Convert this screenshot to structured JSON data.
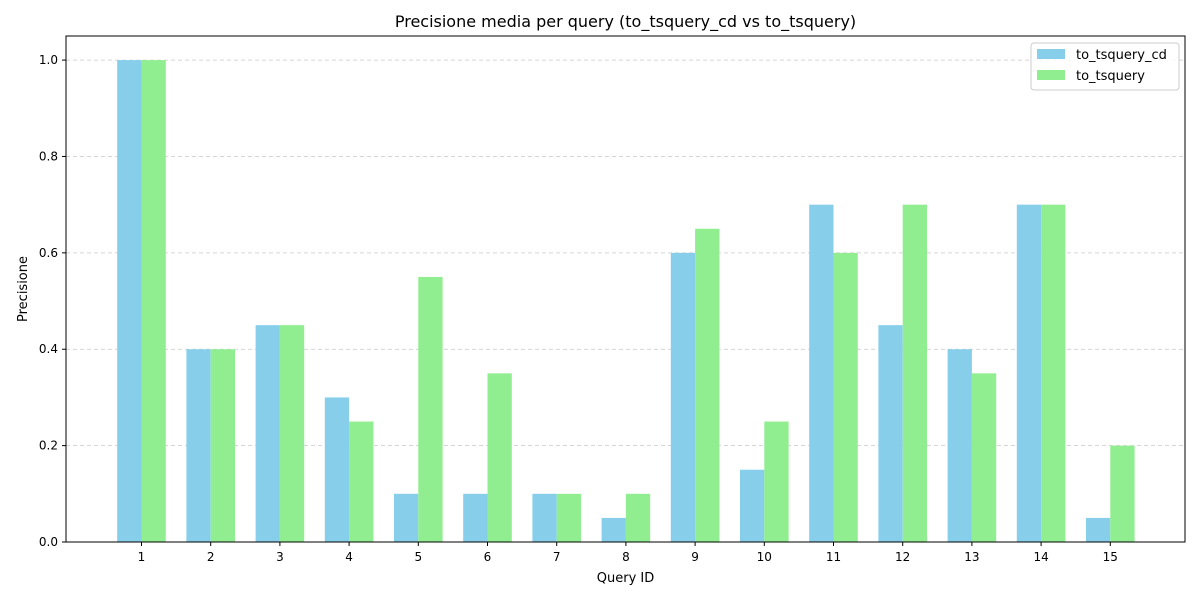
{
  "chart_data": {
    "type": "bar",
    "title": "Precisione media per query (to_tsquery_cd vs to_tsquery)",
    "xlabel": "Query ID",
    "ylabel": "Precisione",
    "categories": [
      "1",
      "2",
      "3",
      "4",
      "5",
      "6",
      "7",
      "8",
      "9",
      "10",
      "11",
      "12",
      "13",
      "14",
      "15"
    ],
    "series": [
      {
        "name": "to_tsquery_cd",
        "color": "#87ceeb",
        "values": [
          1.0,
          0.4,
          0.45,
          0.3,
          0.1,
          0.1,
          0.1,
          0.05,
          0.6,
          0.15,
          0.7,
          0.45,
          0.4,
          0.7,
          0.05
        ]
      },
      {
        "name": "to_tsquery",
        "color": "#90ee90",
        "values": [
          1.0,
          0.4,
          0.45,
          0.25,
          0.55,
          0.35,
          0.1,
          0.1,
          0.65,
          0.25,
          0.6,
          0.7,
          0.35,
          0.7,
          0.2
        ]
      }
    ],
    "ylim": [
      0,
      1.05
    ],
    "yticks": [
      "0.0",
      "0.2",
      "0.4",
      "0.6",
      "0.8",
      "1.0"
    ],
    "ytick_values": [
      0,
      0.2,
      0.4,
      0.6,
      0.8,
      1.0
    ],
    "grid": "y-dashed",
    "legend": "top-right"
  }
}
